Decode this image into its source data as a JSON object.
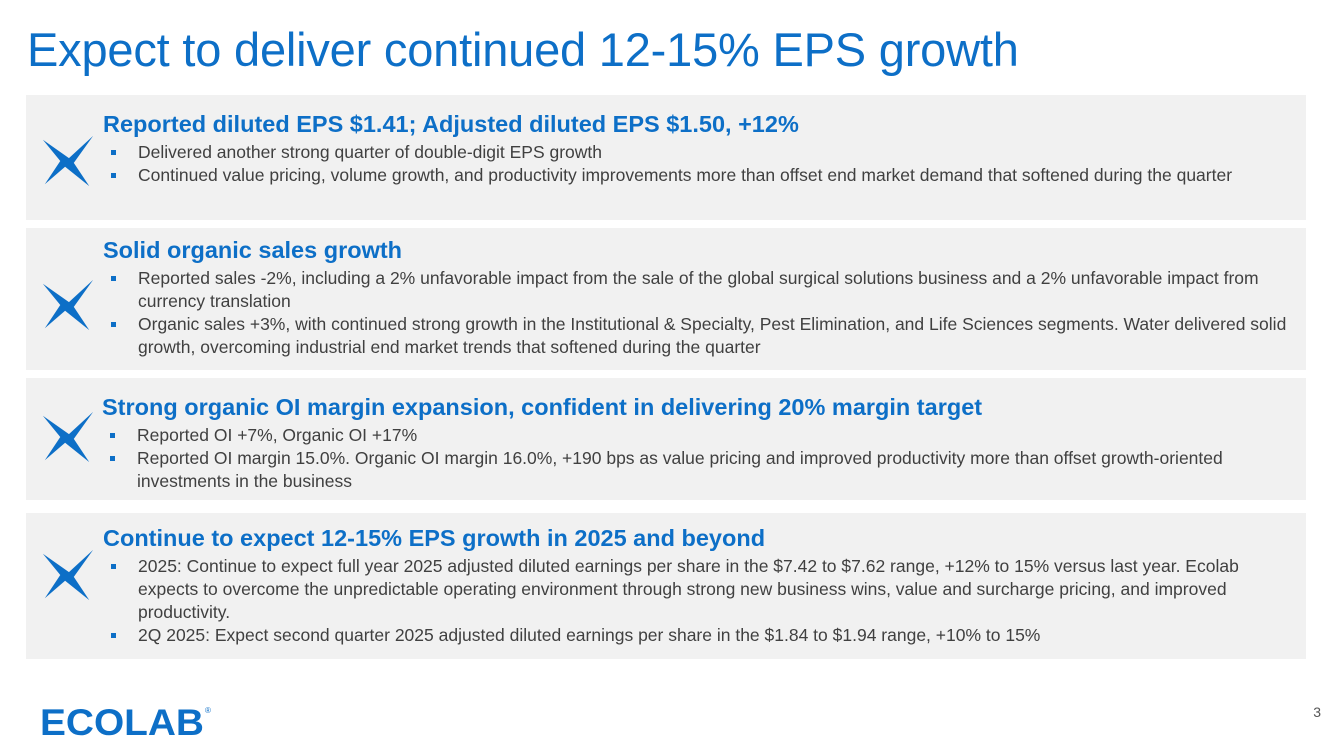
{
  "slide": {
    "title": "Expect to deliver continued 12-15% EPS growth",
    "page_number": "3",
    "logo": {
      "text": "ECOLAB",
      "registered": "®",
      "color": "#0d6fc7"
    }
  },
  "colors": {
    "accent": "#0d6fc7",
    "panel_bg": "#f1f1f1",
    "body_text": "#404040"
  },
  "sections": [
    {
      "icon": "ecolab-star-icon",
      "heading": "Reported diluted EPS $1.41; Adjusted diluted EPS $1.50, +12%",
      "bullets": [
        "Delivered another strong quarter of double-digit EPS growth",
        "Continued value pricing, volume growth, and productivity improvements more than offset end market demand that softened during the quarter"
      ]
    },
    {
      "icon": "ecolab-star-icon",
      "heading": "Solid organic sales growth",
      "bullets": [
        "Reported sales -2%, including a 2% unfavorable impact from the sale of the global surgical solutions business and a 2% unfavorable impact from currency translation",
        "Organic sales +3%, with continued strong growth in the Institutional & Specialty, Pest Elimination, and Life Sciences segments. Water delivered solid growth, overcoming industrial end market trends that softened during the quarter"
      ]
    },
    {
      "icon": "ecolab-star-icon",
      "heading": "Strong organic OI margin expansion, confident in delivering 20% margin target",
      "bullets": [
        "Reported OI +7%, Organic OI +17%",
        "Reported OI margin 15.0%. Organic OI margin 16.0%, +190 bps as value pricing and improved productivity more than offset growth-oriented investments in the business"
      ]
    },
    {
      "icon": "ecolab-star-icon",
      "heading": "Continue to expect 12-15% EPS growth in 2025 and beyond",
      "bullets": [
        "2025: Continue to expect full year 2025 adjusted diluted earnings per share in the $7.42 to $7.62 range, +12% to 15% versus last year. Ecolab expects to overcome the unpredictable operating environment through strong new business wins, value and surcharge pricing, and improved productivity.",
        "2Q 2025: Expect second quarter 2025 adjusted diluted earnings per share in the $1.84 to $1.94 range, +10% to 15%"
      ]
    }
  ]
}
